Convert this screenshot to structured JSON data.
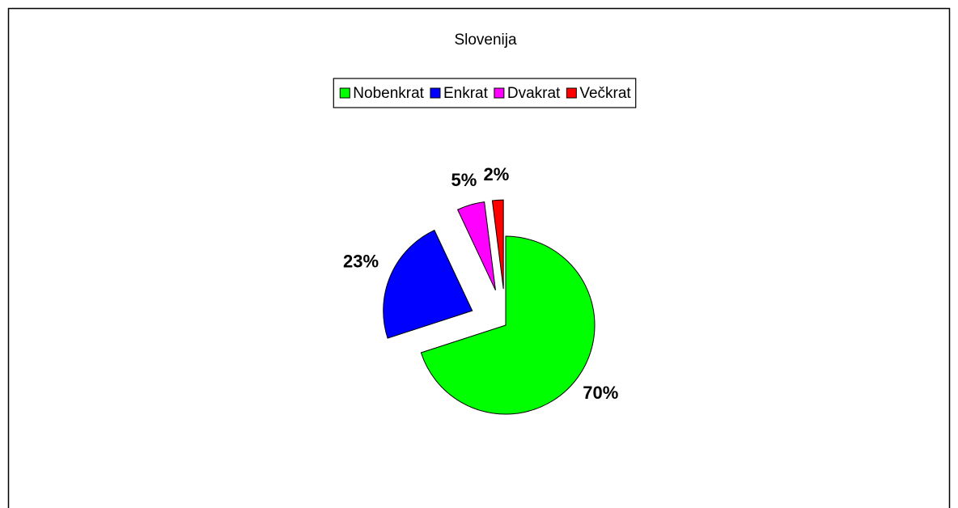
{
  "chart_data": {
    "type": "pie",
    "title": "Slovenija",
    "categories": [
      "Nobenkrat",
      "Enkrat",
      "Dvakrat",
      "Večkrat"
    ],
    "values": [
      70,
      23,
      5,
      2
    ],
    "value_labels": [
      "70%",
      "23%",
      "5%",
      "2%"
    ],
    "colors": [
      "#00ff00",
      "#0000ff",
      "#ff00ff",
      "#ff0000"
    ],
    "legend": "top"
  }
}
